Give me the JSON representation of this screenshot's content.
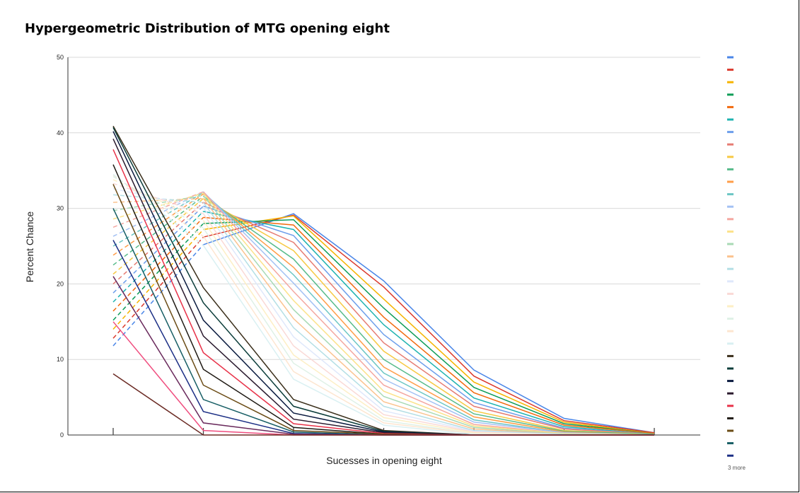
{
  "chart_data": {
    "type": "line",
    "title": "Hypergeometric Distribution of MTG opening eight",
    "xlabel": "Sucesses in opening eight",
    "ylabel": "Percent Chance",
    "x": [
      0,
      1,
      2,
      3,
      4,
      5,
      6
    ],
    "ylim": [
      0,
      50
    ],
    "yticks": [
      0,
      10,
      20,
      30,
      40,
      50
    ],
    "grid": true,
    "legend_position": "right",
    "legend_overflow_label": "3 more",
    "series": [
      {
        "color": "#4a86e8",
        "dashed": true,
        "values": [
          11.8,
          25.2,
          29.3,
          20.4,
          8.6,
          2.2,
          0.3
        ]
      },
      {
        "color": "#db3a2e",
        "dashed": true,
        "values": [
          12.8,
          26.2,
          29.1,
          19.6,
          7.8,
          1.9,
          0.3
        ]
      },
      {
        "color": "#f6b400",
        "dashed": true,
        "values": [
          14.0,
          27.2,
          29.0,
          18.0,
          7.0,
          1.7,
          0.2
        ]
      },
      {
        "color": "#0f9d58",
        "dashed": true,
        "values": [
          15.2,
          28.0,
          28.5,
          16.8,
          6.3,
          1.5,
          0.2
        ]
      },
      {
        "color": "#f26b0f",
        "dashed": true,
        "values": [
          16.4,
          28.8,
          27.8,
          15.6,
          5.6,
          1.3,
          0.2
        ]
      },
      {
        "color": "#1fb3b0",
        "dashed": true,
        "values": [
          17.6,
          29.6,
          27.2,
          14.6,
          4.9,
          1.1,
          0.1
        ]
      },
      {
        "color": "#6d9eeb",
        "dashed": true,
        "values": [
          18.8,
          30.3,
          26.4,
          13.3,
          4.3,
          0.9,
          0.1
        ]
      },
      {
        "color": "#e67c73",
        "dashed": true,
        "values": [
          20.0,
          30.8,
          25.5,
          12.2,
          3.8,
          0.8,
          0.1
        ]
      },
      {
        "color": "#f7c944",
        "dashed": true,
        "values": [
          21.3,
          31.3,
          24.4,
          11.1,
          3.2,
          0.6,
          0.1
        ]
      },
      {
        "color": "#57bb8a",
        "dashed": true,
        "values": [
          22.5,
          31.6,
          23.3,
          10.0,
          2.8,
          0.5,
          0.1
        ]
      },
      {
        "color": "#ff9e49",
        "dashed": true,
        "values": [
          23.8,
          31.9,
          22.2,
          9.0,
          2.4,
          0.4,
          0.0
        ]
      },
      {
        "color": "#6cc6c4",
        "dashed": true,
        "values": [
          25.0,
          32.1,
          21.2,
          8.2,
          2.0,
          0.3,
          0.0
        ]
      },
      {
        "color": "#a4c2f4",
        "dashed": true,
        "values": [
          26.3,
          32.2,
          20.1,
          7.4,
          1.7,
          0.3,
          0.0
        ]
      },
      {
        "color": "#f4a7a0",
        "dashed": true,
        "values": [
          27.5,
          32.2,
          19.0,
          6.6,
          1.4,
          0.2,
          0.0
        ]
      },
      {
        "color": "#fce28a",
        "dashed": true,
        "values": [
          28.6,
          32.0,
          17.8,
          5.8,
          1.2,
          0.2,
          0.0
        ]
      },
      {
        "color": "#a8dab5",
        "dashed": true,
        "values": [
          29.7,
          31.7,
          16.6,
          5.1,
          1.0,
          0.1,
          0.0
        ]
      },
      {
        "color": "#fbc38f",
        "dashed": true,
        "values": [
          30.8,
          31.3,
          15.4,
          4.4,
          0.8,
          0.1,
          0.0
        ]
      },
      {
        "color": "#b4dfe5",
        "dashed": true,
        "values": [
          31.8,
          30.8,
          14.2,
          3.8,
          0.6,
          0.1,
          0.0
        ]
      },
      {
        "color": "#dfe8fb",
        "dashed": true,
        "values": [
          32.6,
          30.1,
          13.0,
          3.2,
          0.5,
          0.0,
          0.0
        ]
      },
      {
        "color": "#fad9d6",
        "dashed": true,
        "values": [
          33.3,
          29.3,
          11.8,
          2.7,
          0.4,
          0.0,
          0.0
        ]
      },
      {
        "color": "#fdefc5",
        "dashed": true,
        "values": [
          33.8,
          28.4,
          10.6,
          2.3,
          0.3,
          0.0,
          0.0
        ]
      },
      {
        "color": "#dff1e6",
        "dashed": true,
        "values": [
          34.2,
          27.4,
          9.5,
          1.9,
          0.2,
          0.0,
          0.0
        ]
      },
      {
        "color": "#fde6d0",
        "dashed": true,
        "values": [
          34.4,
          26.3,
          8.4,
          1.6,
          0.2,
          0.0,
          0.0
        ]
      },
      {
        "color": "#d9f0f2",
        "dashed": true,
        "values": [
          34.5,
          25.1,
          7.4,
          1.3,
          0.1,
          0.0,
          0.0
        ]
      },
      {
        "color": "#3b2f1b",
        "dashed": false,
        "values": [
          40.9,
          19.5,
          4.7,
          0.6,
          0.0,
          0.0,
          0.0
        ]
      },
      {
        "color": "#0b3d3a",
        "dashed": false,
        "values": [
          40.7,
          17.5,
          3.8,
          0.5,
          0.0,
          0.0,
          0.0
        ]
      },
      {
        "color": "#0a1a3f",
        "dashed": false,
        "values": [
          40.2,
          15.2,
          2.9,
          0.4,
          0.0,
          0.0,
          0.0
        ]
      },
      {
        "color": "#2a1a2e",
        "dashed": false,
        "values": [
          39.2,
          13.1,
          2.1,
          0.3,
          0.0,
          0.0,
          0.0
        ]
      },
      {
        "color": "#e8334a",
        "dashed": false,
        "values": [
          37.8,
          10.9,
          1.5,
          0.2,
          0.0,
          0.0,
          0.0
        ]
      },
      {
        "color": "#1f1a14",
        "dashed": false,
        "values": [
          35.8,
          8.7,
          1.0,
          0.1,
          0.0,
          0.0,
          0.0
        ]
      },
      {
        "color": "#6b4c16",
        "dashed": false,
        "values": [
          33.2,
          6.6,
          0.6,
          0.1,
          0.0,
          0.0,
          0.0
        ]
      },
      {
        "color": "#175e65",
        "dashed": false,
        "values": [
          30.0,
          4.7,
          0.4,
          0.0,
          0.0,
          0.0,
          0.0
        ]
      },
      {
        "color": "#1c2f85",
        "dashed": false,
        "values": [
          25.8,
          3.1,
          0.2,
          0.0,
          0.0,
          0.0,
          0.0
        ]
      },
      {
        "color": "#6a2a5c",
        "dashed": false,
        "values": [
          21.0,
          1.6,
          0.1,
          0.0,
          0.0,
          0.0,
          0.0
        ]
      },
      {
        "color": "#f04e7f",
        "dashed": false,
        "values": [
          15.0,
          0.6,
          0.0,
          0.0,
          0.0,
          0.0,
          0.0
        ]
      },
      {
        "color": "#6b2b24",
        "dashed": false,
        "values": [
          8.1,
          0.0,
          0.0,
          0.0,
          0.0,
          0.0,
          0.0
        ]
      }
    ]
  }
}
